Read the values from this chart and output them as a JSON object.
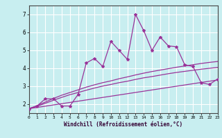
{
  "xlabel": "Windchill (Refroidissement éolien,°C)",
  "bg_color": "#c8eef0",
  "grid_color": "#ffffff",
  "line_color": "#993399",
  "xlim": [
    0,
    23
  ],
  "ylim": [
    1.5,
    7.5
  ],
  "yticks": [
    2,
    3,
    4,
    5,
    6,
    7
  ],
  "xticks": [
    0,
    1,
    2,
    3,
    4,
    5,
    6,
    7,
    8,
    9,
    10,
    11,
    12,
    13,
    14,
    15,
    16,
    17,
    18,
    19,
    20,
    21,
    22,
    23
  ],
  "main_line_x": [
    0,
    1,
    2,
    3,
    4,
    5,
    6,
    7,
    8,
    9,
    10,
    11,
    12,
    13,
    14,
    15,
    16,
    17,
    18,
    19,
    20,
    21,
    22,
    23
  ],
  "main_line_y": [
    1.75,
    1.9,
    2.3,
    2.3,
    1.9,
    1.9,
    2.55,
    4.3,
    4.55,
    4.1,
    5.5,
    5.0,
    4.5,
    7.0,
    6.1,
    5.0,
    5.75,
    5.25,
    5.2,
    4.2,
    4.1,
    3.2,
    3.1,
    3.4
  ],
  "curve_line_x": [
    0,
    1,
    2,
    3,
    4,
    5,
    6,
    7,
    8,
    9,
    10,
    11,
    12,
    13,
    14,
    15,
    16,
    17,
    18,
    19,
    20,
    21,
    22,
    23
  ],
  "curve_line_y": [
    1.75,
    1.88,
    2.05,
    2.22,
    2.38,
    2.53,
    2.65,
    2.78,
    2.9,
    3.01,
    3.1,
    3.2,
    3.28,
    3.38,
    3.47,
    3.54,
    3.62,
    3.7,
    3.77,
    3.83,
    3.89,
    3.95,
    4.0,
    4.05
  ],
  "upper_curve_x": [
    0,
    1,
    2,
    3,
    4,
    5,
    6,
    7,
    8,
    9,
    10,
    11,
    12,
    13,
    14,
    15,
    16,
    17,
    18,
    19,
    20,
    21,
    22,
    23
  ],
  "upper_curve_y": [
    1.75,
    1.92,
    2.12,
    2.32,
    2.5,
    2.65,
    2.8,
    2.95,
    3.08,
    3.2,
    3.3,
    3.42,
    3.52,
    3.63,
    3.73,
    3.82,
    3.9,
    3.98,
    4.06,
    4.13,
    4.2,
    4.27,
    4.33,
    4.38
  ],
  "lower_line_x": [
    0,
    23
  ],
  "lower_line_y": [
    1.75,
    3.35
  ]
}
